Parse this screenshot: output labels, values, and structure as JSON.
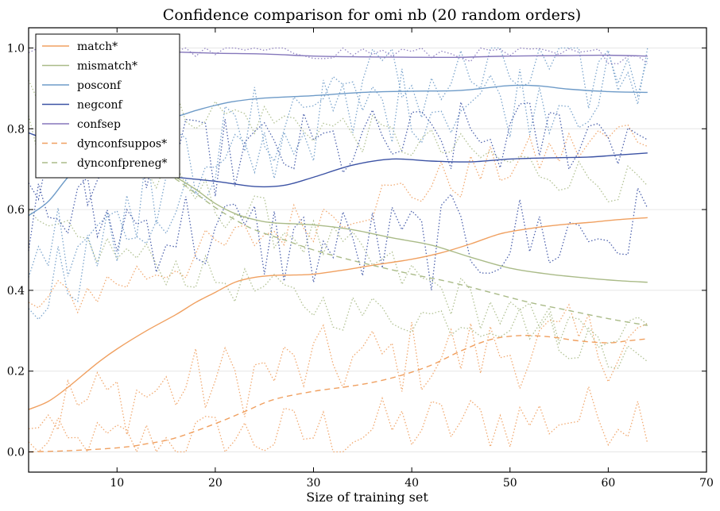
{
  "chart_data": {
    "type": "line",
    "title": "Confidence comparison for omi nb (20 random orders)",
    "xlabel": "Size of training set",
    "ylabel": "",
    "xlim": [
      1,
      70
    ],
    "ylim": [
      -0.05,
      1.05
    ],
    "xticks": [
      "10",
      "20",
      "30",
      "40",
      "50",
      "60",
      "70"
    ],
    "yticks": [
      "0.0",
      "0.2",
      "0.4",
      "0.6",
      "0.8",
      "1.0"
    ],
    "legend_position": "top-left",
    "grid": "horizontal",
    "series": [
      {
        "name": "match*",
        "color": "#f0a060",
        "dash": "solid",
        "x": [
          1,
          3,
          5,
          8,
          10,
          13,
          16,
          18,
          20,
          22,
          24,
          26,
          28,
          30,
          33,
          36,
          40,
          43,
          46,
          49,
          52,
          55,
          58,
          61,
          64
        ],
        "y": [
          0.105,
          0.125,
          0.16,
          0.22,
          0.255,
          0.3,
          0.34,
          0.37,
          0.395,
          0.42,
          0.432,
          0.437,
          0.438,
          0.44,
          0.45,
          0.462,
          0.477,
          0.493,
          0.515,
          0.54,
          0.553,
          0.562,
          0.568,
          0.575,
          0.58
        ]
      },
      {
        "name": "mismatch*",
        "color": "#aabb88",
        "dash": "solid",
        "x": [
          10,
          13,
          16,
          18,
          20,
          22,
          24,
          26,
          30,
          34,
          38,
          42,
          46,
          50,
          54,
          58,
          61,
          64
        ],
        "y": [
          0.76,
          0.72,
          0.68,
          0.65,
          0.615,
          0.59,
          0.575,
          0.567,
          0.562,
          0.55,
          0.53,
          0.512,
          0.482,
          0.455,
          0.44,
          0.43,
          0.424,
          0.42
        ]
      },
      {
        "name": "posconf",
        "color": "#6e9bc8",
        "dash": "solid",
        "x": [
          1,
          3,
          5,
          8,
          10,
          13,
          16,
          18,
          20,
          22,
          25,
          30,
          35,
          40,
          45,
          50,
          53,
          56,
          60,
          64
        ],
        "y": [
          0.585,
          0.62,
          0.68,
          0.76,
          0.795,
          0.815,
          0.83,
          0.845,
          0.858,
          0.868,
          0.876,
          0.882,
          0.89,
          0.893,
          0.895,
          0.907,
          0.906,
          0.898,
          0.892,
          0.89
        ]
      },
      {
        "name": "negconf",
        "color": "#3b52a4",
        "dash": "solid",
        "x": [
          1,
          3,
          5,
          8,
          10,
          13,
          16,
          20,
          24,
          27,
          30,
          34,
          38,
          42,
          46,
          50,
          54,
          58,
          61,
          64
        ],
        "y": [
          0.79,
          0.77,
          0.74,
          0.715,
          0.7,
          0.69,
          0.68,
          0.67,
          0.657,
          0.66,
          0.68,
          0.71,
          0.725,
          0.72,
          0.718,
          0.725,
          0.728,
          0.73,
          0.735,
          0.74
        ]
      },
      {
        "name": "confsep",
        "color": "#8577bb",
        "dash": "solid",
        "x": [
          16,
          20,
          25,
          30,
          35,
          40,
          45,
          50,
          55,
          60,
          64
        ],
        "y": [
          0.99,
          0.987,
          0.985,
          0.98,
          0.978,
          0.977,
          0.977,
          0.98,
          0.981,
          0.982,
          0.98
        ]
      },
      {
        "name": "dynconfsuppos*",
        "color": "#f0a060",
        "dash": "dashed",
        "x": [
          1,
          5,
          10,
          13,
          16,
          20,
          23,
          26,
          30,
          33,
          36,
          39,
          42,
          45,
          48,
          51,
          54,
          57,
          60,
          62,
          64
        ],
        "y": [
          0.0,
          0.003,
          0.01,
          0.02,
          0.035,
          0.07,
          0.1,
          0.13,
          0.15,
          0.16,
          0.172,
          0.19,
          0.215,
          0.25,
          0.278,
          0.288,
          0.285,
          0.275,
          0.27,
          0.275,
          0.28
        ]
      },
      {
        "name": "dynconfpreneg*",
        "color": "#aabb88",
        "dash": "dashed",
        "x": [
          10,
          13,
          16,
          18,
          20,
          22,
          24,
          27,
          30,
          33,
          36,
          40,
          44,
          48,
          52,
          56,
          60,
          64
        ],
        "y": [
          0.76,
          0.72,
          0.675,
          0.64,
          0.605,
          0.575,
          0.55,
          0.525,
          0.5,
          0.48,
          0.462,
          0.44,
          0.42,
          0.395,
          0.37,
          0.35,
          0.33,
          0.313
        ]
      }
    ]
  }
}
